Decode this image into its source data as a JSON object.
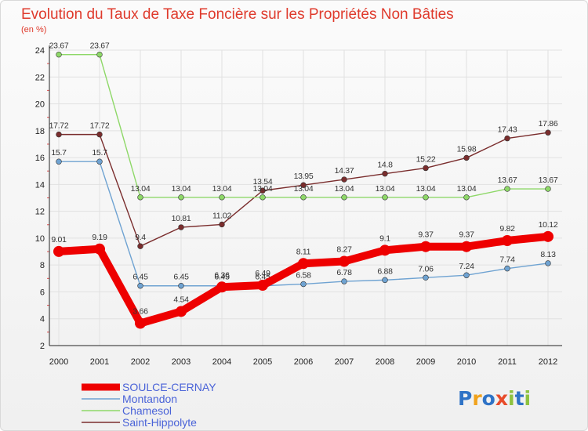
{
  "chart_data": {
    "type": "line",
    "title": "Evolution du Taux de Taxe Foncière sur les Propriétés Non Bâties",
    "ylabel": "(en %)",
    "xlabel": "",
    "ylim": [
      2,
      24
    ],
    "yticks": [
      2,
      4,
      6,
      8,
      10,
      12,
      14,
      16,
      18,
      20,
      22,
      24
    ],
    "categories": [
      "2000",
      "2001",
      "2002",
      "2003",
      "2004",
      "2005",
      "2006",
      "2007",
      "2008",
      "2009",
      "2010",
      "2011",
      "2012"
    ],
    "series": [
      {
        "name": "SOULCE-CERNAY",
        "color": "#ee0000",
        "values": [
          9.01,
          9.19,
          3.66,
          4.54,
          6.36,
          6.49,
          8.11,
          8.27,
          9.1,
          9.37,
          9.37,
          9.82,
          10.12
        ],
        "labels": [
          "9.01",
          "9.19",
          "3.66",
          "4.54",
          "6.36",
          "6.49",
          "8.11",
          "8.27",
          "9.1",
          "9.37",
          "9.37",
          "9.82",
          "10.12"
        ]
      },
      {
        "name": "Montandon",
        "color": "#6fa3d2",
        "values": [
          15.7,
          15.7,
          6.45,
          6.45,
          6.45,
          6.45,
          6.58,
          6.78,
          6.88,
          7.06,
          7.24,
          7.74,
          8.13
        ],
        "labels": [
          "15.7",
          "15.7",
          "6.45",
          "6.45",
          "6.45",
          "6.45",
          "6.58",
          "6.78",
          "6.88",
          "7.06",
          "7.24",
          "7.74",
          "8.13"
        ]
      },
      {
        "name": "Chamesol",
        "color": "#8ed868",
        "values": [
          23.67,
          23.67,
          13.04,
          13.04,
          13.04,
          13.04,
          13.04,
          13.04,
          13.04,
          13.04,
          13.04,
          13.67,
          13.67
        ],
        "labels": [
          "23.67",
          "23.67",
          "13.04",
          "13.04",
          "13.04",
          "13.04",
          "13.04",
          "13.04",
          "13.04",
          "13.04",
          "13.04",
          "13.67",
          "13.67"
        ]
      },
      {
        "name": "Saint-Hippolyte",
        "color": "#7a2d2d",
        "values": [
          17.72,
          17.72,
          9.4,
          10.81,
          11.02,
          13.54,
          13.95,
          14.37,
          14.8,
          15.22,
          15.98,
          17.43,
          17.86
        ],
        "labels": [
          "17.72",
          "17.72",
          "9.4",
          "10.81",
          "11.02",
          "13.54",
          "13.95",
          "14.37",
          "14.8",
          "15.22",
          "15.98",
          "17.43",
          "17.86"
        ]
      }
    ]
  },
  "logo": {
    "text": "Proxiti",
    "colors": [
      "#2f73c6",
      "#f0a21c",
      "#2f73c6",
      "#e84b2a",
      "#8ec23f",
      "#2f73c6",
      "#8ec23f"
    ]
  }
}
